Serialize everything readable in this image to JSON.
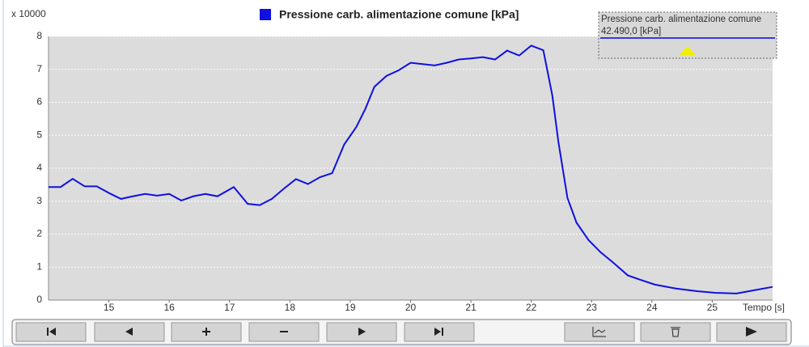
{
  "chart_data": {
    "type": "line",
    "title": "Pressione carb. alimentazione comune [kPa]",
    "xlabel": "Tempo [s]",
    "ylabel": "x 10000",
    "x": [
      14.0,
      14.2,
      14.4,
      14.6,
      14.8,
      15.0,
      15.2,
      15.4,
      15.6,
      15.8,
      16.0,
      16.2,
      16.4,
      16.6,
      16.8,
      17.07,
      17.3,
      17.5,
      17.7,
      17.9,
      18.1,
      18.3,
      18.5,
      18.7,
      18.9,
      19.1,
      19.25,
      19.4,
      19.6,
      19.8,
      20.0,
      20.2,
      20.4,
      20.6,
      20.8,
      21.0,
      21.2,
      21.4,
      21.6,
      21.8,
      22.0,
      22.2,
      22.35,
      22.45,
      22.6,
      22.75,
      22.95,
      23.15,
      23.35,
      23.6,
      23.8,
      24.05,
      24.4,
      24.75,
      25.05,
      25.4,
      25.7,
      26.0
    ],
    "series": [
      {
        "name": "Pressione carb. alimentazione comune [kPa]",
        "color": "#1010e0",
        "values": [
          3.43,
          3.43,
          3.68,
          3.45,
          3.45,
          3.25,
          3.07,
          3.15,
          3.22,
          3.17,
          3.22,
          3.02,
          3.15,
          3.22,
          3.15,
          3.43,
          2.92,
          2.88,
          3.07,
          3.38,
          3.67,
          3.52,
          3.73,
          3.85,
          4.72,
          5.25,
          5.8,
          6.47,
          6.8,
          6.97,
          7.2,
          7.16,
          7.12,
          7.2,
          7.3,
          7.33,
          7.37,
          7.3,
          7.57,
          7.42,
          7.72,
          7.58,
          6.2,
          4.8,
          3.1,
          2.35,
          1.82,
          1.45,
          1.15,
          0.75,
          0.62,
          0.47,
          0.35,
          0.27,
          0.22,
          0.2,
          0.3,
          0.4
        ]
      }
    ],
    "xlim": [
      14,
      26
    ],
    "xticks": [
      15,
      16,
      17,
      18,
      19,
      20,
      21,
      22,
      23,
      24,
      25
    ],
    "ylim": [
      0,
      8
    ],
    "yticks": [
      0,
      1,
      2,
      3,
      4,
      5,
      6,
      7,
      8
    ],
    "grid": true
  },
  "tooltip": {
    "title": "Pressione carb. alimentazione comune",
    "value": "42.490,0 [kPa]"
  }
}
